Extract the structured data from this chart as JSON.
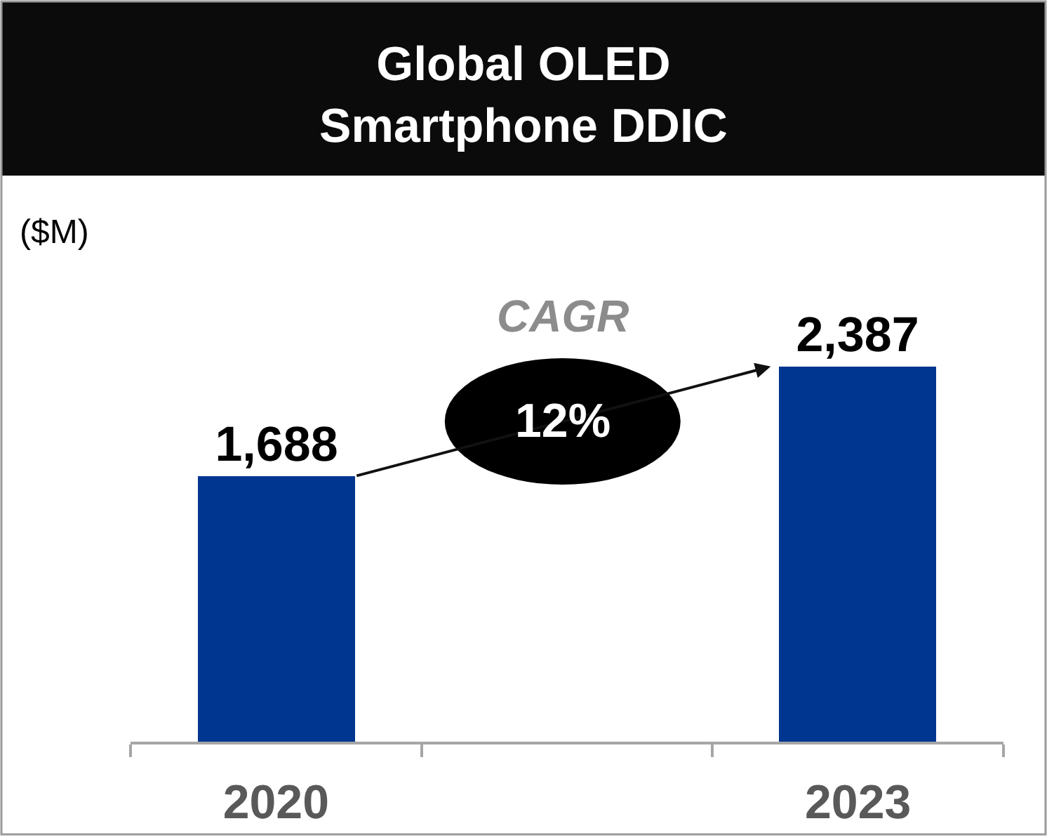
{
  "chart_data": {
    "type": "bar",
    "title": "Global OLED\nSmartphone DDIC",
    "ylabel": "($M)",
    "categories": [
      "2020",
      null,
      "2023"
    ],
    "values": [
      1688,
      null,
      2387
    ],
    "color": "#003590",
    "value_labels": [
      "1,688",
      null,
      "2,387"
    ],
    "tick_labels": "x",
    "annotations": [
      "CAGR",
      "12%"
    ]
  }
}
